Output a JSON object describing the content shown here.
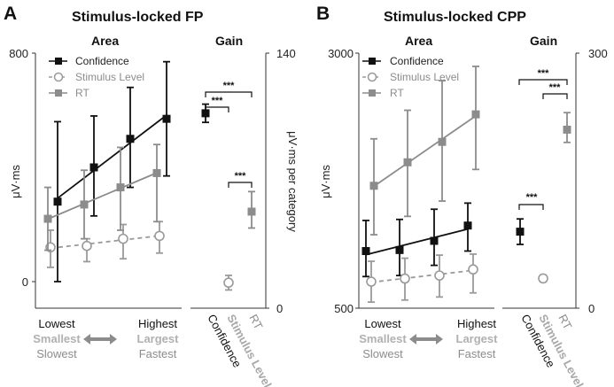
{
  "colors": {
    "confidence": "#111111",
    "stimulus": "#9a9a9a",
    "rt": "#8c8c8c",
    "arrow": "#8c8c8c"
  },
  "panels": [
    {
      "letter": "A",
      "title": "Stimulus-locked FP",
      "area_label": "Area",
      "gain_label": "Gain",
      "left_ylabel": "μV·ms",
      "right_ylabel": "μV·ms per category",
      "left_ticks": [
        "800",
        "0"
      ],
      "right_ticks": [
        "140",
        "0"
      ],
      "legend": [
        "Confidence",
        "Stimulus Level",
        "RT"
      ],
      "gain_categories": [
        "Confidence",
        "Stimulus Level",
        "RT"
      ],
      "stars": [
        "***",
        "***",
        "***"
      ],
      "bottom": {
        "lowest": "Lowest",
        "smallest": "Smallest",
        "slowest": "Slowest",
        "highest": "Highest",
        "largest": "Largest",
        "fastest": "Fastest"
      }
    },
    {
      "letter": "B",
      "title": "Stimulus-locked CPP",
      "area_label": "Area",
      "gain_label": "Gain",
      "left_ylabel": "μV·ms",
      "right_ylabel": "",
      "left_ticks": [
        "3000",
        "500"
      ],
      "right_ticks": [
        "300",
        "0"
      ],
      "legend": [
        "Confidence",
        "Stimulus Level",
        "RT"
      ],
      "gain_categories": [
        "Confidence",
        "Stimulus Level",
        "RT"
      ],
      "stars": [
        "***",
        "***",
        "***"
      ],
      "bottom": {
        "lowest": "Lowest",
        "smallest": "Smallest",
        "slowest": "Slowest",
        "highest": "Highest",
        "largest": "Largest",
        "fastest": "Fastest"
      }
    }
  ],
  "chart_data": [
    {
      "type": "line",
      "title": "Stimulus-locked FP — Area",
      "ylabel": "μV·ms",
      "ylim": [
        0,
        800
      ],
      "x": [
        1,
        2,
        3,
        4
      ],
      "series": [
        {
          "name": "Confidence",
          "style": "solid-square",
          "values": [
            280,
            400,
            500,
            570
          ],
          "err_lo": [
            0,
            230,
            330,
            370
          ],
          "err_hi": [
            560,
            580,
            680,
            770
          ]
        },
        {
          "name": "Stimulus Level",
          "style": "dashed-circle",
          "values": [
            120,
            125,
            150,
            160
          ],
          "err_lo": [
            50,
            70,
            80,
            100
          ],
          "err_hi": [
            180,
            150,
            200,
            210
          ]
        },
        {
          "name": "RT",
          "style": "solid-square-grey",
          "values": [
            220,
            270,
            330,
            380
          ],
          "err_lo": [
            110,
            150,
            180,
            210
          ],
          "err_hi": [
            330,
            390,
            470,
            480
          ]
        }
      ]
    },
    {
      "type": "scatter",
      "title": "Stimulus-locked FP — Gain",
      "ylabel": "μV·ms per category",
      "ylim": [
        0,
        140
      ],
      "categories": [
        "Confidence",
        "Stimulus Level",
        "RT"
      ],
      "values": [
        107,
        14,
        53
      ],
      "err_lo": [
        102,
        10,
        44
      ],
      "err_hi": [
        112,
        18,
        64
      ]
    },
    {
      "type": "line",
      "title": "Stimulus-locked CPP — Area",
      "ylabel": "μV·ms",
      "ylim": [
        500,
        3000
      ],
      "x": [
        1,
        2,
        3,
        4
      ],
      "series": [
        {
          "name": "Confidence",
          "style": "solid-square",
          "values": [
            1060,
            1070,
            1160,
            1310
          ],
          "err_lo": [
            810,
            820,
            920,
            1060
          ],
          "err_hi": [
            1360,
            1370,
            1470,
            1530
          ]
        },
        {
          "name": "Stimulus Level",
          "style": "dashed-circle",
          "values": [
            760,
            790,
            820,
            880
          ],
          "err_lo": [
            560,
            580,
            610,
            650
          ],
          "err_hi": [
            960,
            990,
            1020,
            1030
          ]
        },
        {
          "name": "RT",
          "style": "solid-square-grey",
          "values": [
            1700,
            1930,
            2130,
            2400
          ],
          "err_lo": [
            1220,
            1400,
            1550,
            1860
          ],
          "err_hi": [
            2160,
            2440,
            2730,
            2870
          ]
        }
      ]
    },
    {
      "type": "scatter",
      "title": "Stimulus-locked CPP — Gain",
      "ylabel": "",
      "ylim": [
        0,
        300
      ],
      "categories": [
        "Confidence",
        "Stimulus Level",
        "RT"
      ],
      "values": [
        90,
        35,
        210
      ],
      "err_lo": [
        75,
        31,
        195
      ],
      "err_hi": [
        105,
        39,
        230
      ]
    }
  ]
}
